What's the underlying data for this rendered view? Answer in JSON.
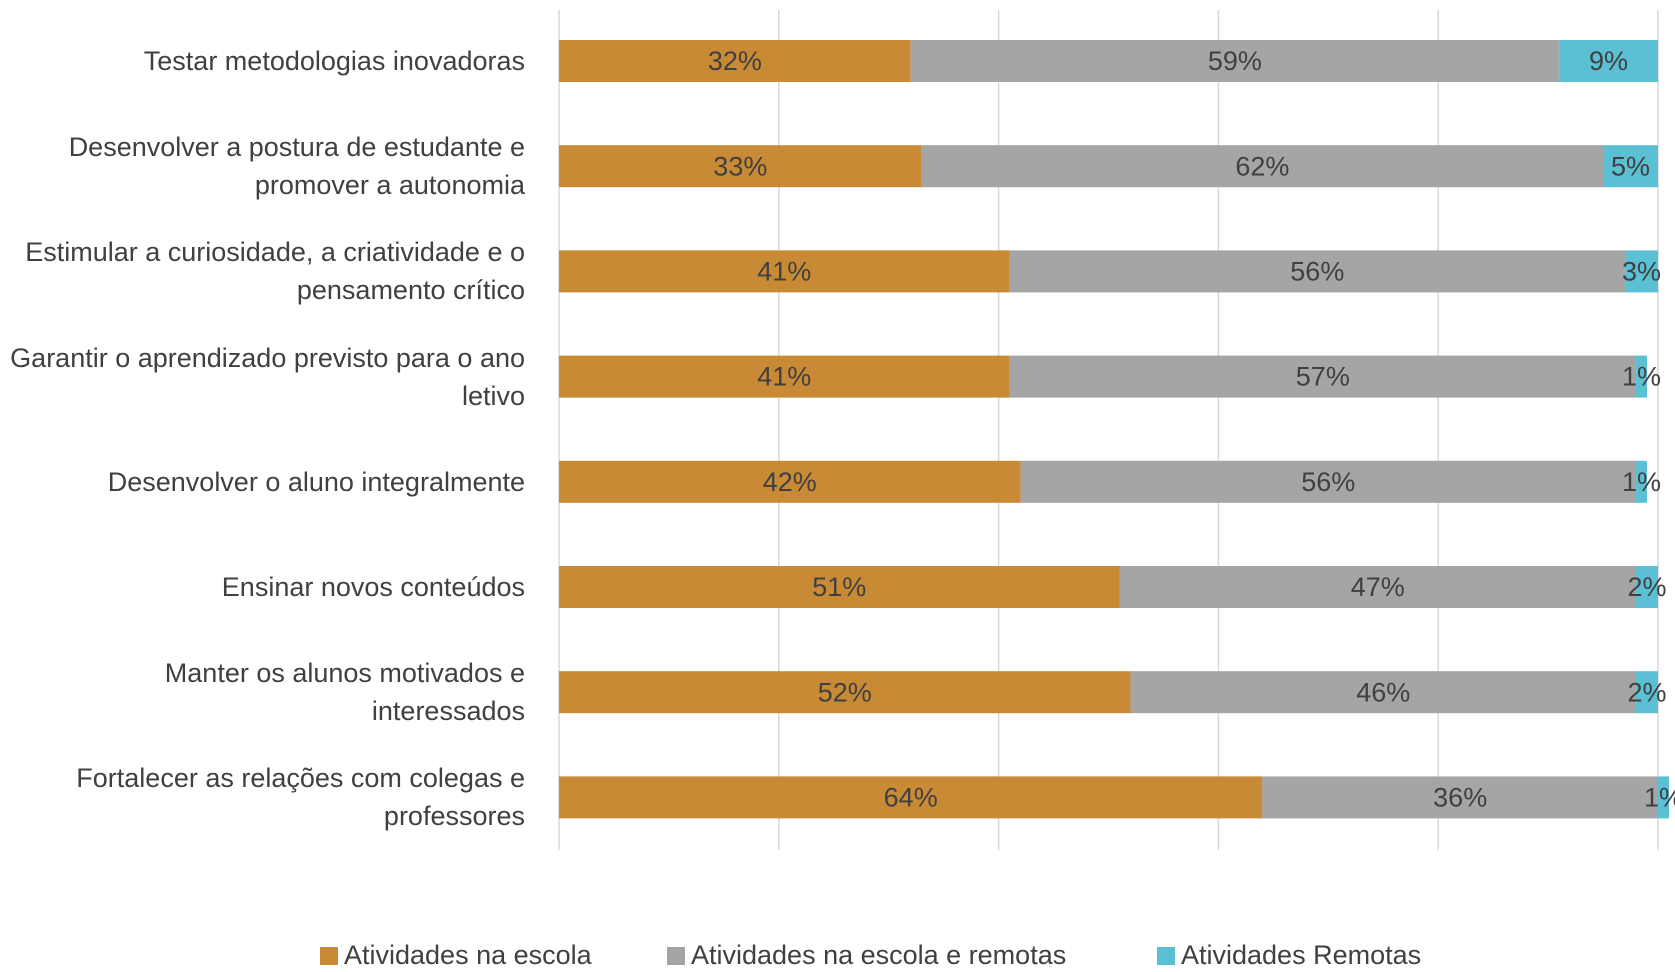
{
  "chart_data": {
    "type": "stacked_barh",
    "categories": [
      "Testar metodologias inovadoras",
      "Desenvolver a postura de estudante e promover a autonomia",
      "Estimular a curiosidade, a criatividade e o pensamento crítico",
      "Garantir o aprendizado previsto para o ano letivo",
      "Desenvolver o aluno integralmente",
      "Ensinar novos conteúdos",
      "Manter os alunos motivados e interessados",
      "Fortalecer as relações com colegas e professores"
    ],
    "series": [
      {
        "name": "Atividades na escola",
        "color": "#c98a35",
        "values": [
          32,
          33,
          41,
          41,
          42,
          51,
          52,
          64
        ],
        "value_labels": [
          "32%",
          "33%",
          "41%",
          "41%",
          "42%",
          "51%",
          "52%",
          "64%"
        ]
      },
      {
        "name": "Atividades na escola e remotas",
        "color": "#a5a5a5",
        "values": [
          59,
          62,
          56,
          57,
          56,
          47,
          46,
          36
        ],
        "value_labels": [
          "59%",
          "62%",
          "56%",
          "57%",
          "56%",
          "47%",
          "46%",
          "36%"
        ]
      },
      {
        "name": "Atividades Remotas",
        "color": "#5bc0d3",
        "values": [
          9,
          5,
          3,
          1,
          1,
          2,
          2,
          1
        ],
        "value_labels": [
          "9%",
          "5%",
          "3%",
          "1%",
          "1%",
          "2%",
          "2%",
          "1%"
        ]
      }
    ],
    "xlim": [
      0,
      100
    ],
    "xticks": [
      0,
      20,
      40,
      60,
      80,
      100
    ],
    "grid": true,
    "legend": "bottom"
  }
}
